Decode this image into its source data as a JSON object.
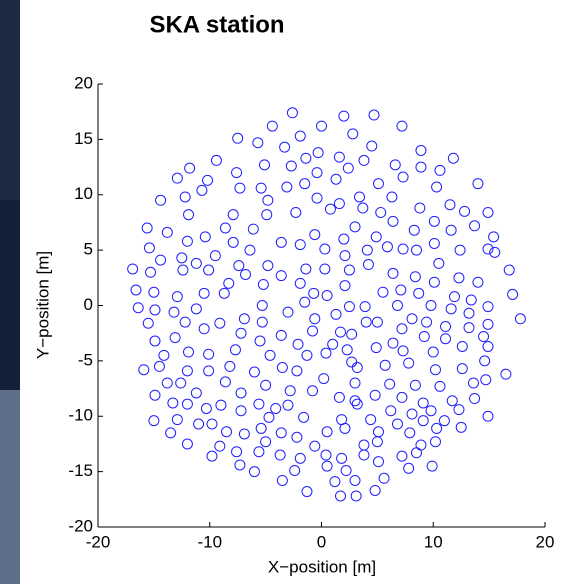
{
  "chart_data": {
    "type": "scatter",
    "title": "SKA station",
    "xlabel": "X−position [m]",
    "ylabel": "Y−position [m]",
    "color": "#1f1fff",
    "xlim": [
      -20,
      20
    ],
    "xticks": [
      -20,
      -10,
      0,
      10,
      20
    ],
    "ylim": [
      -20,
      20
    ],
    "yticks": [
      -20,
      -15,
      -10,
      -5,
      0,
      5,
      10,
      15,
      20
    ],
    "x": [
      -2.6,
      2.0,
      4.7,
      -4.4,
      0,
      7.2,
      -1.9,
      2.8,
      -7.5,
      -5.7,
      4.5,
      -3.3,
      -0.3,
      1.6,
      8.9,
      11.8,
      -9.4,
      -11.8,
      -1.4,
      3.8,
      6.6,
      -5.1,
      -7.6,
      -2.7,
      -0.4,
      2.4,
      8.9,
      10.6,
      -12.9,
      -10.2,
      1.3,
      5.1,
      14.0,
      7.3,
      -14.4,
      -12.2,
      -10.7,
      -7.3,
      -5.4,
      -3.1,
      -0.4,
      1.6,
      3.4,
      6.3,
      10.3,
      -1.5,
      -4.8,
      0.8,
      3.7,
      5.3,
      -2.3,
      -4.9,
      -7.9,
      11.5,
      14.9,
      -11.9,
      8.8,
      12.8,
      -15.6,
      -13.8,
      -10.4,
      -8.6,
      -6.1,
      -0.6,
      3.0,
      6.4,
      10.1,
      13.7,
      4.9,
      8.3,
      11.6,
      -3.6,
      -7.9,
      -12.0,
      -15.4,
      2.0,
      5.9,
      10.1,
      15.4,
      -9.5,
      -6.4,
      -1.9,
      0.3,
      2.1,
      4.1,
      7.3,
      8.5,
      12.4,
      14.9,
      -14.4,
      -12.5,
      -11.2,
      -7.4,
      -4.8,
      -1.4,
      4.2,
      10.5,
      15.5,
      -16.9,
      -15.3,
      -12.4,
      -10.1,
      -6.8,
      -3.6,
      0.3,
      2.5,
      6.4,
      8.4,
      12.3,
      16.8,
      -8.3,
      -5.2,
      -1.9,
      2.1,
      10.1,
      14.0,
      -16.6,
      -15.0,
      -12.9,
      -10.5,
      -8.7,
      -0.7,
      0.5,
      5.5,
      7.1,
      8.7,
      11.9,
      17.1,
      13.4,
      -16.4,
      -14.9,
      -13.2,
      -11.2,
      -5.3,
      -3.0,
      -1.5,
      2.5,
      3.9,
      6.8,
      9.8,
      11.6,
      14.9,
      -6.9,
      -5.3,
      1.3,
      4.0,
      8.1,
      13.2,
      17.8,
      -15.5,
      -12.2,
      -9.1,
      -0.6,
      5.0,
      9.4,
      11.1,
      14.9,
      13.2,
      -10.5,
      -7.2,
      -3.6,
      -0.8,
      1.7,
      2.7,
      7.2,
      9.2,
      11.1,
      -14.9,
      -13.1,
      -5.5,
      -2.1,
      1.0,
      6.4,
      14.5,
      12.6,
      7.3,
      -14.1,
      -11.9,
      -10.1,
      -7.7,
      -4.6,
      -1.3,
      0.4,
      2.3,
      4.9,
      10.0,
      14.9,
      -15.9,
      -14.5,
      -12.0,
      -10.1,
      -8.2,
      -6.0,
      -3.5,
      -2.2,
      2.7,
      3.2,
      5.7,
      7.8,
      10.2,
      12.6,
      14.6,
      16.5,
      -13.8,
      -12.6,
      -8.6,
      -5.0,
      0.2,
      3.0,
      6.1,
      8.4,
      10.6,
      13.6,
      14.7,
      -14.9,
      -11.2,
      -7.2,
      -2.8,
      -0.8,
      1.6,
      3.0,
      4.8,
      7.2,
      9.1,
      11.7,
      13.7,
      -13.3,
      -12.0,
      -10.3,
      -9.0,
      -7.2,
      -5.6,
      -4.1,
      -3.0,
      3.2,
      6.2,
      8.1,
      9.8,
      12.3,
      -15.0,
      -12.9,
      -11.0,
      -9.8,
      -4.7,
      -1.6,
      1.8,
      4.4,
      6.8,
      9.1,
      11.0,
      14.9,
      -13.5,
      -8.5,
      -6.9,
      -5.4,
      -3.6,
      0.5,
      2.1,
      5.1,
      7.9,
      10.3,
      12.5,
      -2.2,
      -12.0,
      -9.1,
      -5.0,
      -0.6,
      3.8,
      5.0,
      8.9,
      10.2,
      -9.8,
      -7.6,
      -5.6,
      -3.7,
      -1.9,
      0.4,
      1.8,
      3.8,
      5.1,
      7.2,
      8.5,
      -7.3,
      -6.0,
      -2.4,
      0.5,
      2.2,
      7.8,
      9.9,
      -3.5,
      3.0,
      5.6,
      1.2,
      -1.3,
      4.8,
      1.7,
      3.1
    ],
    "values": [
      17.4,
      17.1,
      17.2,
      16.2,
      16.2,
      16.2,
      15.3,
      15.5,
      15.1,
      14.7,
      14.4,
      14.3,
      13.8,
      13.4,
      14.0,
      13.3,
      13.1,
      12.4,
      13.3,
      13.1,
      12.7,
      12.7,
      12.0,
      12.6,
      12.0,
      12.4,
      12.5,
      12.2,
      11.5,
      11.3,
      11.4,
      11.0,
      11.0,
      11.6,
      9.5,
      9.8,
      10.4,
      10.6,
      10.6,
      10.7,
      9.7,
      9.2,
      9.8,
      9.8,
      10.7,
      11.0,
      9.5,
      8.7,
      8.8,
      8.4,
      8.4,
      8.2,
      8.2,
      9.1,
      8.4,
      8.2,
      8.8,
      8.5,
      7.0,
      6.6,
      6.2,
      7.0,
      6.9,
      6.4,
      7.1,
      7.6,
      7.6,
      7.2,
      6.2,
      6.8,
      6.8,
      5.7,
      5.7,
      5.8,
      5.2,
      6.0,
      5.3,
      5.6,
      6.2,
      4.5,
      5.0,
      5.5,
      5.1,
      4.5,
      5.0,
      5.1,
      5.0,
      5.0,
      5.1,
      4.1,
      4.3,
      3.8,
      3.6,
      3.6,
      3.3,
      3.7,
      3.8,
      4.8,
      3.3,
      3.0,
      3.2,
      3.2,
      2.8,
      2.7,
      3.3,
      3.2,
      2.9,
      2.6,
      2.5,
      3.2,
      2.0,
      1.9,
      2.0,
      1.8,
      2.1,
      2.1,
      1.4,
      1.2,
      0.8,
      1.1,
      1.1,
      1.1,
      0.9,
      1.2,
      1.4,
      1.1,
      0.8,
      1.0,
      0.5,
      -0.2,
      -0.4,
      -0.6,
      -0.3,
      0.0,
      -0.6,
      0.3,
      -0.1,
      -0.1,
      0.0,
      0.0,
      -0.3,
      -0.1,
      -1.2,
      -1.5,
      -0.8,
      -1.5,
      -1.2,
      -0.7,
      -1.2,
      -1.6,
      -1.5,
      -1.6,
      -1.2,
      -1.5,
      -1.5,
      -1.9,
      -1.7,
      -2.0,
      -2.1,
      -2.5,
      -2.7,
      -2.3,
      -2.4,
      -2.6,
      -2.1,
      -2.8,
      -3.0,
      -3.2,
      -2.9,
      -3.2,
      -3.5,
      -3.5,
      -3.4,
      -2.8,
      -3.7,
      -4.1,
      -4.5,
      -4.2,
      -4.4,
      -4.0,
      -4.5,
      -4.5,
      -4.3,
      -4.0,
      -3.8,
      -4.2,
      -3.7,
      -5.8,
      -5.5,
      -5.9,
      -5.9,
      -5.5,
      -6.0,
      -5.6,
      -5.9,
      -5.1,
      -5.6,
      -5.4,
      -5.2,
      -5.8,
      -5.7,
      -5.0,
      -6.2,
      -7.0,
      -7.0,
      -6.9,
      -7.2,
      -6.6,
      -7.0,
      -7.1,
      -7.2,
      -7.3,
      -7.0,
      -6.7,
      -8.1,
      -7.9,
      -7.9,
      -7.7,
      -7.7,
      -8.3,
      -8.6,
      -8.1,
      -8.3,
      -8.8,
      -8.6,
      -8.4,
      -8.8,
      -8.9,
      -9.3,
      -9.0,
      -9.5,
      -8.9,
      -9.3,
      -9.0,
      -8.9,
      -9.5,
      -9.8,
      -9.5,
      -9.4,
      -10.4,
      -10.3,
      -10.7,
      -10.7,
      -10.1,
      -10.1,
      -10.3,
      -10.3,
      -10.7,
      -10.4,
      -10.4,
      -10.0,
      -11.5,
      -11.4,
      -11.6,
      -11.1,
      -11.5,
      -11.4,
      -11.1,
      -11.4,
      -11.5,
      -11.1,
      -11.0,
      -11.9,
      -12.5,
      -12.7,
      -12.3,
      -12.7,
      -12.6,
      -12.3,
      -12.6,
      -12.3,
      -13.6,
      -13.2,
      -13.2,
      -13.5,
      -13.8,
      -13.5,
      -13.8,
      -13.5,
      -14.1,
      -13.6,
      -13.3,
      -14.4,
      -15.0,
      -14.9,
      -14.5,
      -14.9,
      -14.7,
      -14.5,
      -15.8,
      -15.8,
      -15.6,
      -15.9,
      -16.8,
      -16.7,
      -17.2,
      -17.2
    ]
  }
}
